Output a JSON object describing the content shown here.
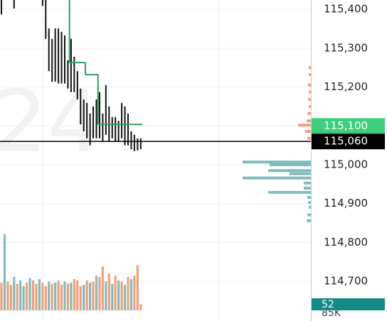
{
  "chart_data": {
    "type": "bar-range",
    "watermark": "24",
    "ylim": [
      114598,
      115424
    ],
    "yticks": [
      {
        "value": 115400,
        "label": "115,400"
      },
      {
        "value": 115300,
        "label": "115,300"
      },
      {
        "value": 115200,
        "label": "115,200"
      },
      {
        "value": 115100,
        "label": "115,100"
      },
      {
        "value": 115000,
        "label": "115,000"
      },
      {
        "value": 114900,
        "label": "114,900"
      },
      {
        "value": 114800,
        "label": "114,800"
      },
      {
        "value": 114700,
        "label": "114,700"
      }
    ],
    "grid": true,
    "highs": [
      115440,
      null,
      null,
      null,
      115440,
      null,
      null,
      null,
      null,
      null,
      null,
      null,
      null,
      115440,
      115440,
      115351,
      115324,
      115351,
      115351,
      115342,
      115333,
      115269,
      115324,
      115278,
      115241,
      115196,
      115168,
      115159,
      115132,
      115150,
      115168,
      115187,
      115132,
      115205,
      115150,
      115123,
      115123,
      115113,
      115159,
      115150,
      115132,
      115086,
      115077,
      115068,
      115068
    ],
    "lows": [
      115387,
      null,
      null,
      null,
      115402,
      null,
      null,
      null,
      null,
      null,
      null,
      null,
      null,
      115409,
      115324,
      115241,
      115214,
      115214,
      115209,
      115209,
      115209,
      115196,
      115187,
      115187,
      115168,
      115104,
      115086,
      115068,
      115050,
      115068,
      115068,
      115068,
      115059,
      115077,
      115059,
      115068,
      115059,
      115059,
      115068,
      115050,
      115050,
      115040,
      115035,
      115037,
      115040
    ],
    "bar_color": "#111111",
    "step_line": {
      "color": "#2e9e5e",
      "values": [
        null,
        null,
        null,
        null,
        null,
        null,
        null,
        null,
        null,
        null,
        null,
        null,
        null,
        null,
        null,
        null,
        null,
        null,
        null,
        null,
        null,
        115440,
        115263,
        115263,
        115263,
        115263,
        115263,
        115232,
        115232,
        115232,
        115232,
        115104,
        115104,
        115104,
        115104,
        115104,
        115104,
        115104,
        115104,
        115104,
        115104,
        115104,
        115104,
        115104,
        115104
      ]
    },
    "price_lines": [
      {
        "value": 115100,
        "label": "115,100",
        "color": "#3ecf7e"
      },
      {
        "value": 115060,
        "label": "115,060",
        "color": "#000000"
      }
    ],
    "volume": {
      "vlim": [
        0,
        800
      ],
      "values": [
        240,
        660,
        250,
        220,
        290,
        230,
        260,
        210,
        240,
        280,
        260,
        230,
        270,
        240,
        210,
        250,
        230,
        240,
        260,
        220,
        250,
        230,
        240,
        270,
        260,
        210,
        220,
        260,
        240,
        250,
        300,
        290,
        380,
        250,
        320,
        230,
        300,
        260,
        250,
        220,
        290,
        270,
        300,
        390,
        52
      ],
      "colors": [
        "#f0a07a",
        "#7fbcbc",
        "#f0a07a",
        "#f0a07a",
        "#7fbcbc",
        "#f0a07a",
        "#7fbcbc",
        "#7fbcbc",
        "#f0a07a",
        "#7fbcbc",
        "#f0a07a",
        "#f0a07a",
        "#7fbcbc",
        "#f0a07a",
        "#f0a07a",
        "#7fbcbc",
        "#f0a07a",
        "#7fbcbc",
        "#f0a07a",
        "#f0a07a",
        "#7fbcbc",
        "#f0a07a",
        "#7fbcbc",
        "#f0a07a",
        "#f0a07a",
        "#f0a07a",
        "#7fbcbc",
        "#f0a07a",
        "#7fbcbc",
        "#f0a07a",
        "#7fbcbc",
        "#f0a07a",
        "#f0a07a",
        "#7fbcbc",
        "#f0a07a",
        "#7fbcbc",
        "#f0a07a",
        "#7fbcbc",
        "#f0a07a",
        "#7fbcbc",
        "#f0a07a",
        "#7fbcbc",
        "#f0a07a",
        "#f0a07a",
        "#f0a07a"
      ],
      "last_color": "#138a87",
      "axis_label": "85K"
    },
    "profile": {
      "xlim": [
        0,
        100
      ],
      "levels": [
        115250,
        115232,
        115205,
        115187,
        115168,
        115150,
        115132,
        115113,
        115102,
        115086,
        115068,
        115007,
        115000,
        114985,
        114977,
        114966,
        114953,
        114940,
        114929,
        114916,
        114903,
        114891,
        114871,
        114856
      ],
      "values": [
        3,
        3,
        4,
        3,
        4,
        3,
        5,
        6,
        18,
        8,
        5,
        96,
        58,
        60,
        30,
        96,
        10,
        10,
        60,
        5,
        4,
        3,
        5,
        6
      ],
      "colors": [
        "#f0a07a",
        "#f0a07a",
        "#f0a07a",
        "#f0a07a",
        "#f0a07a",
        "#f0a07a",
        "#f0a07a",
        "#f0a07a",
        "#f0a07a",
        "#f0a07a",
        "#f0a07a",
        "#7fbcbc",
        "#7fbcbc",
        "#7fbcbc",
        "#7fbcbc",
        "#7fbcbc",
        "#7fbcbc",
        "#7fbcbc",
        "#7fbcbc",
        "#7fbcbc",
        "#7fbcbc",
        "#7fbcbc",
        "#7fbcbc",
        "#7fbcbc"
      ]
    }
  }
}
